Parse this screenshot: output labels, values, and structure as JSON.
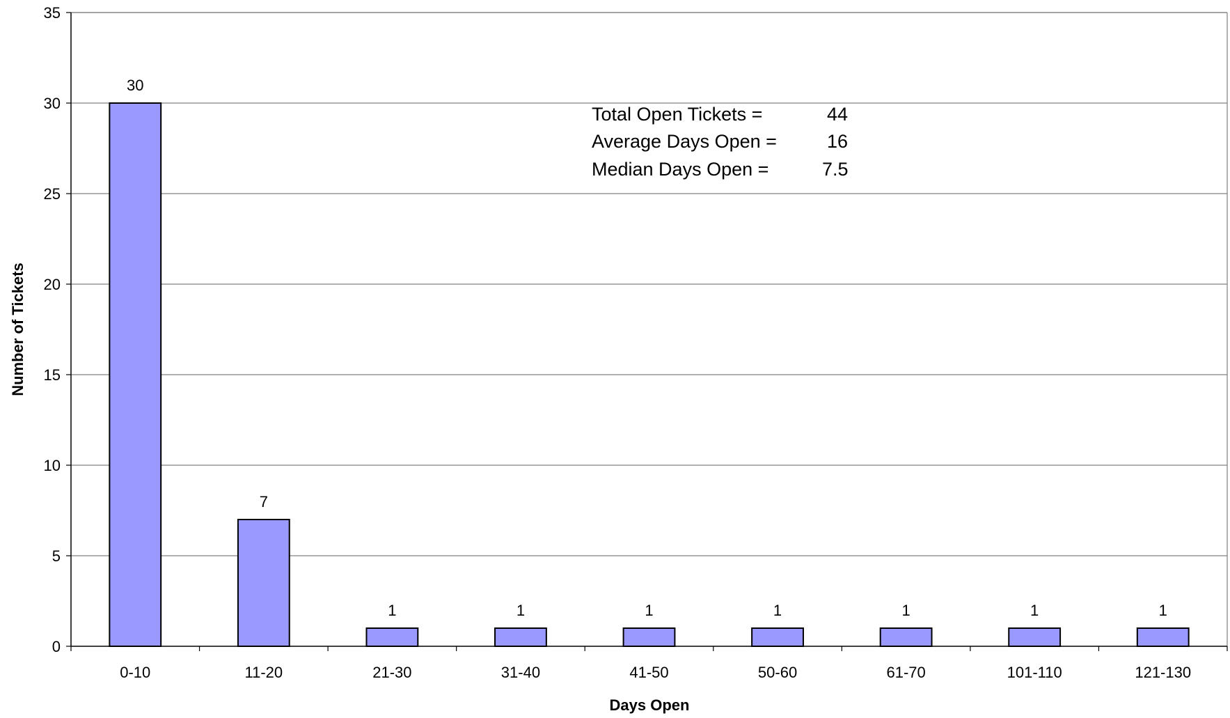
{
  "chart_data": {
    "type": "bar",
    "title": "",
    "xlabel": "Days Open",
    "ylabel": "Number of Tickets",
    "categories": [
      "0-10",
      "11-20",
      "21-30",
      "31-40",
      "41-50",
      "50-60",
      "61-70",
      "101-110",
      "121-130"
    ],
    "values": [
      30,
      7,
      1,
      1,
      1,
      1,
      1,
      1,
      1
    ],
    "ylim": [
      0,
      35
    ],
    "yticks": [
      0,
      5,
      10,
      15,
      20,
      25,
      30,
      35
    ],
    "grid": true,
    "legend": "none",
    "data_labels": true,
    "bar_color": "#9999ff",
    "annotations": [
      {
        "label": "Total Open Tickets =",
        "value": "44"
      },
      {
        "label": "Average Days Open =",
        "value": "16"
      },
      {
        "label": "Median Days Open =",
        "value": "7.5"
      }
    ]
  }
}
